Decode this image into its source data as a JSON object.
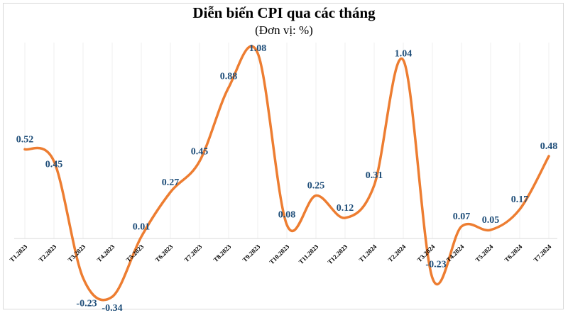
{
  "chart_data": {
    "type": "line",
    "title": "Diễn biến CPI qua các tháng",
    "subtitle": "(Đơn vị: %)",
    "xlabel": "",
    "ylabel": "",
    "categories": [
      "T1.2023",
      "T2.2023",
      "T3.2023",
      "T4.2023",
      "T5.2023",
      "T6.2023",
      "T7.2023",
      "T8.2023",
      "T9.2023",
      "T10.2023",
      "T11.2023",
      "T12.2023",
      "T1.2024",
      "T2.2024",
      "T3.2024",
      "T4.2024",
      "T5.2024",
      "T6.2024",
      "T7.2024"
    ],
    "series": [
      {
        "values": [
          0.52,
          0.45,
          -0.23,
          -0.34,
          0.01,
          0.27,
          0.45,
          0.88,
          1.08,
          0.08,
          0.25,
          0.12,
          0.31,
          1.04,
          -0.23,
          0.07,
          0.05,
          0.17,
          0.48
        ]
      }
    ],
    "labels": [
      "0.52",
      "0.45",
      "-0.23",
      "-0.34",
      "0.01",
      "0.27",
      "0.45",
      "0.88",
      "1.08",
      "0.08",
      "0.25",
      "0.12",
      "0.31",
      "1.04",
      "-0.23",
      "0.07",
      "0.05",
      "0.17",
      "0.48"
    ],
    "ylim": [
      -0.4,
      1.1
    ],
    "grid": true,
    "legend": "none",
    "line_color": "#ed7d31",
    "label_color": "#1f4e79"
  }
}
